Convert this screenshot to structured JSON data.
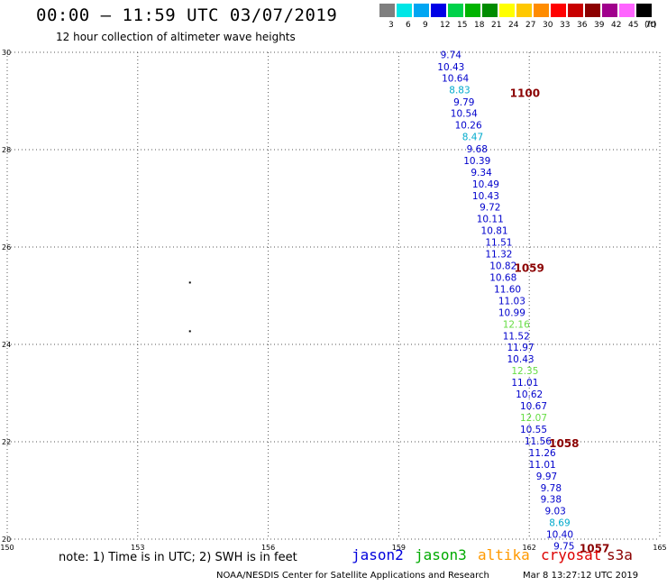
{
  "header": {
    "title": "00:00 – 11:59 UTC 03/07/2019",
    "subtitle": "12 hour collection of altimeter wave heights"
  },
  "scale": {
    "unit": "(ft)",
    "bins": [
      {
        "label": "3",
        "color": "#7f7f7f"
      },
      {
        "label": "6",
        "color": "#00e6e6"
      },
      {
        "label": "9",
        "color": "#00a6f2"
      },
      {
        "label": "12",
        "color": "#0000e6"
      },
      {
        "label": "15",
        "color": "#00d24a"
      },
      {
        "label": "18",
        "color": "#00b400"
      },
      {
        "label": "21",
        "color": "#008c00"
      },
      {
        "label": "24",
        "color": "#ffff00"
      },
      {
        "label": "27",
        "color": "#ffc800"
      },
      {
        "label": "30",
        "color": "#ff8c00"
      },
      {
        "label": "33",
        "color": "#ff0000"
      },
      {
        "label": "36",
        "color": "#c80000"
      },
      {
        "label": "39",
        "color": "#8c0000"
      },
      {
        "label": "42",
        "color": "#a0008c"
      },
      {
        "label": "45",
        "color": "#ff64ff"
      },
      {
        "label": "70",
        "color": "#000000"
      }
    ]
  },
  "map": {
    "lon_range": [
      150,
      165
    ],
    "lat_range": [
      20,
      30
    ],
    "x_ticks": [
      "150",
      "153",
      "156",
      "159",
      "162",
      "165"
    ],
    "y_ticks": [
      "20",
      "22",
      "24",
      "26",
      "28",
      "30"
    ],
    "grid": true,
    "track": {
      "color_normal": "#0000cc",
      "color_light": "#00aacc",
      "color_green": "#66dd44",
      "points": [
        {
          "lon": 160.2,
          "lat": 29.95,
          "label": "9.74",
          "c": "n"
        },
        {
          "lon": 160.2,
          "lat": 29.7,
          "label": "10.43",
          "c": "n"
        },
        {
          "lon": 160.3,
          "lat": 29.47,
          "label": "10.64",
          "c": "n"
        },
        {
          "lon": 160.4,
          "lat": 29.23,
          "label": "8.83",
          "c": "l"
        },
        {
          "lon": 160.5,
          "lat": 28.98,
          "label": "9.79",
          "c": "n"
        },
        {
          "lon": 160.5,
          "lat": 28.75,
          "label": "10.54",
          "c": "n"
        },
        {
          "lon": 160.6,
          "lat": 28.51,
          "label": "10.26",
          "c": "n"
        },
        {
          "lon": 160.7,
          "lat": 28.27,
          "label": "8.47",
          "c": "l"
        },
        {
          "lon": 160.8,
          "lat": 28.02,
          "label": "9.68",
          "c": "n"
        },
        {
          "lon": 160.8,
          "lat": 27.78,
          "label": "10.39",
          "c": "n"
        },
        {
          "lon": 160.9,
          "lat": 27.54,
          "label": "9.34",
          "c": "n"
        },
        {
          "lon": 161.0,
          "lat": 27.3,
          "label": "10.49",
          "c": "n"
        },
        {
          "lon": 161.0,
          "lat": 27.06,
          "label": "10.43",
          "c": "n"
        },
        {
          "lon": 161.1,
          "lat": 26.82,
          "label": "9.72",
          "c": "n"
        },
        {
          "lon": 161.1,
          "lat": 26.58,
          "label": "10.11",
          "c": "n"
        },
        {
          "lon": 161.2,
          "lat": 26.34,
          "label": "10.81",
          "c": "n"
        },
        {
          "lon": 161.3,
          "lat": 26.1,
          "label": "11.51",
          "c": "n"
        },
        {
          "lon": 161.3,
          "lat": 25.86,
          "label": "11.32",
          "c": "n"
        },
        {
          "lon": 161.4,
          "lat": 25.62,
          "label": "10.82",
          "c": "n"
        },
        {
          "lon": 161.4,
          "lat": 25.38,
          "label": "10.68",
          "c": "n"
        },
        {
          "lon": 161.5,
          "lat": 25.14,
          "label": "11.60",
          "c": "n"
        },
        {
          "lon": 161.6,
          "lat": 24.9,
          "label": "11.03",
          "c": "n"
        },
        {
          "lon": 161.6,
          "lat": 24.66,
          "label": "10.99",
          "c": "n"
        },
        {
          "lon": 161.7,
          "lat": 24.42,
          "label": "12.16",
          "c": "g"
        },
        {
          "lon": 161.7,
          "lat": 24.18,
          "label": "11.52",
          "c": "n"
        },
        {
          "lon": 161.8,
          "lat": 23.94,
          "label": "11.97",
          "c": "n"
        },
        {
          "lon": 161.8,
          "lat": 23.7,
          "label": "10.43",
          "c": "n"
        },
        {
          "lon": 161.9,
          "lat": 23.46,
          "label": "12.35",
          "c": "g"
        },
        {
          "lon": 161.9,
          "lat": 23.22,
          "label": "11.01",
          "c": "n"
        },
        {
          "lon": 162.0,
          "lat": 22.98,
          "label": "10.62",
          "c": "n"
        },
        {
          "lon": 162.1,
          "lat": 22.74,
          "label": "10.67",
          "c": "n"
        },
        {
          "lon": 162.1,
          "lat": 22.5,
          "label": "12.07",
          "c": "g"
        },
        {
          "lon": 162.1,
          "lat": 22.26,
          "label": "10.55",
          "c": "n"
        },
        {
          "lon": 162.2,
          "lat": 22.02,
          "label": "11.56",
          "c": "n"
        },
        {
          "lon": 162.3,
          "lat": 21.78,
          "label": "11.26",
          "c": "n"
        },
        {
          "lon": 162.3,
          "lat": 21.54,
          "label": "11.01",
          "c": "n"
        },
        {
          "lon": 162.4,
          "lat": 21.3,
          "label": "9.97",
          "c": "n"
        },
        {
          "lon": 162.5,
          "lat": 21.06,
          "label": "9.78",
          "c": "n"
        },
        {
          "lon": 162.5,
          "lat": 20.82,
          "label": "9.38",
          "c": "n"
        },
        {
          "lon": 162.6,
          "lat": 20.58,
          "label": "9.03",
          "c": "n"
        },
        {
          "lon": 162.7,
          "lat": 20.34,
          "label": "8.69",
          "c": "l"
        },
        {
          "lon": 162.7,
          "lat": 20.1,
          "label": "10.40",
          "c": "n"
        },
        {
          "lon": 162.8,
          "lat": 19.86,
          "label": "9.75",
          "c": "n"
        }
      ]
    },
    "time_labels": {
      "color": "#8b0000",
      "items": [
        {
          "lon": 161.9,
          "lat": 29.18,
          "label": "1100"
        },
        {
          "lon": 162.0,
          "lat": 25.58,
          "label": "1059"
        },
        {
          "lon": 162.8,
          "lat": 21.98,
          "label": "1058"
        },
        {
          "lon": 163.5,
          "lat": 19.82,
          "label": "1057"
        }
      ]
    },
    "islands": [
      {
        "lon": 154.2,
        "lat": 25.27
      },
      {
        "lon": 154.2,
        "lat": 24.27
      }
    ]
  },
  "footer": {
    "note": "note: 1) Time is in UTC; 2) SWH is in feet",
    "satellites": [
      {
        "name": "jason2",
        "color": "#0000dd"
      },
      {
        "name": "jason3",
        "color": "#00aa00"
      },
      {
        "name": "altika",
        "color": "#ff9900"
      },
      {
        "name": "cryosat",
        "color": "#dd0000"
      },
      {
        "name": "s3a",
        "color": "#8b0000"
      }
    ],
    "credit": "NOAA/NESDIS Center for Satellite Applications and Research",
    "timestamp": "Mar  8 13:27:12 UTC 2019"
  }
}
